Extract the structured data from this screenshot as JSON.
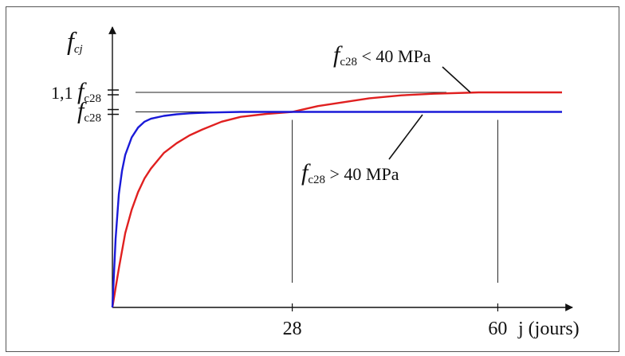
{
  "chart_data": {
    "type": "line",
    "title": "",
    "ylabel": "f_cj",
    "xlabel": "j (jours)",
    "xlim": [
      0,
      70
    ],
    "ylim": [
      0,
      1.1
    ],
    "grid": false,
    "x_ticks": [
      28,
      60
    ],
    "x_tick_labels": [
      "28",
      "60"
    ],
    "y_ticks": [
      {
        "value": 1.0,
        "coef": "",
        "sym": "f",
        "sub": "c28"
      },
      {
        "value": 1.1,
        "coef": "1,1 ",
        "sym": "f",
        "sub": "c28"
      }
    ],
    "x_axis_label": {
      "text": "j (jours)"
    },
    "y_axis_label": {
      "sym": "f",
      "sub": "cj"
    },
    "series": [
      {
        "color": "#e02020",
        "label_sym": "f",
        "label_sub": "c28",
        "label_rest": " < 40 MPa",
        "x": [
          0,
          1,
          2,
          3,
          4,
          5,
          6,
          7,
          8,
          10,
          12,
          14,
          17,
          20,
          24,
          28,
          32,
          36,
          40,
          45,
          50,
          55,
          57,
          60,
          65,
          70
        ],
        "y": [
          0,
          0.2,
          0.38,
          0.5,
          0.59,
          0.66,
          0.71,
          0.75,
          0.79,
          0.84,
          0.88,
          0.91,
          0.95,
          0.975,
          0.99,
          1.0,
          1.03,
          1.05,
          1.07,
          1.085,
          1.093,
          1.098,
          1.1,
          1.1,
          1.1,
          1.1
        ]
      },
      {
        "color": "#1a1ad8",
        "label_sym": "f",
        "label_sub": "c28",
        "label_rest": " > 40 MPa",
        "x": [
          0,
          0.5,
          1,
          1.5,
          2,
          3,
          4,
          5,
          6,
          8,
          10,
          12,
          15,
          20,
          24,
          28,
          35,
          40,
          50,
          60,
          70
        ],
        "y": [
          0,
          0.35,
          0.58,
          0.7,
          0.78,
          0.87,
          0.92,
          0.95,
          0.965,
          0.98,
          0.988,
          0.993,
          0.997,
          1.0,
          1.0,
          1.0,
          1.0,
          1.0,
          1.0,
          1.0,
          1.0
        ]
      }
    ]
  }
}
